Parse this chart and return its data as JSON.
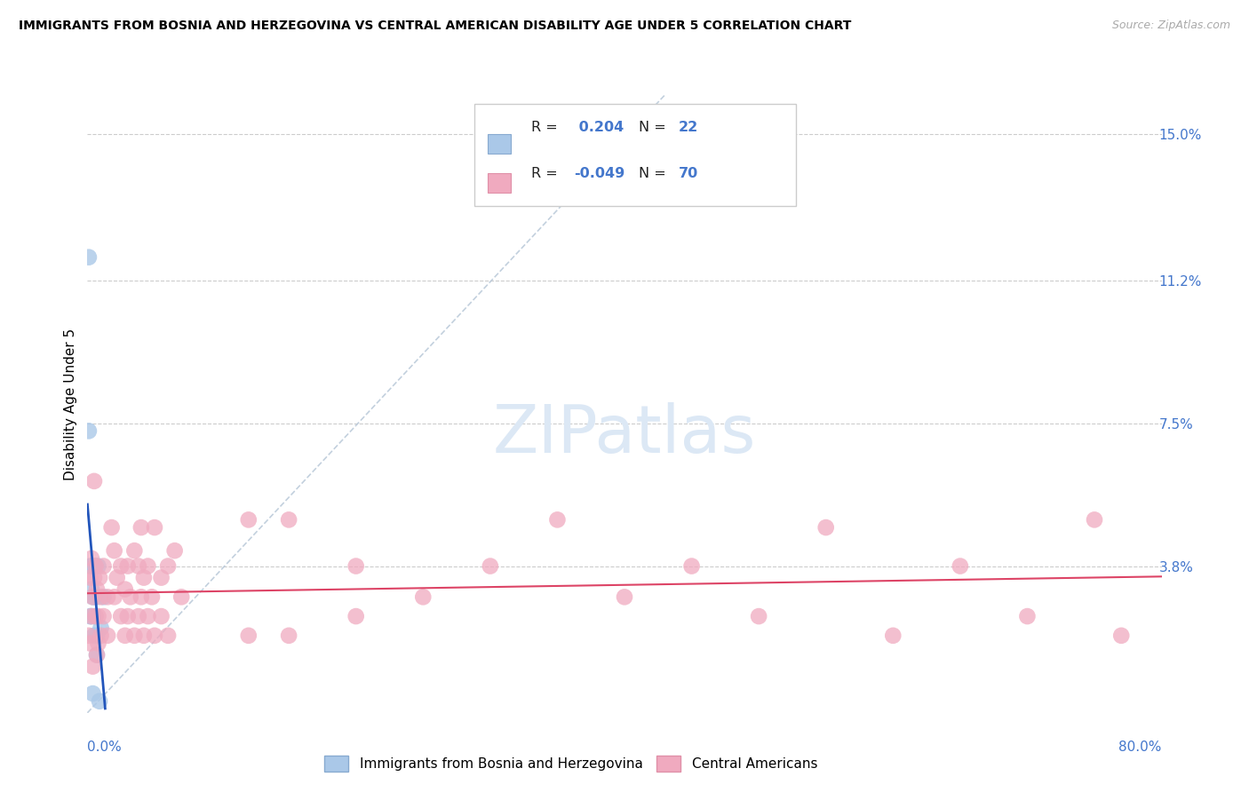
{
  "title": "IMMIGRANTS FROM BOSNIA AND HERZEGOVINA VS CENTRAL AMERICAN DISABILITY AGE UNDER 5 CORRELATION CHART",
  "source": "Source: ZipAtlas.com",
  "ylabel": "Disability Age Under 5",
  "ytick_labels": [
    "15.0%",
    "11.2%",
    "7.5%",
    "3.8%"
  ],
  "ytick_values": [
    0.15,
    0.112,
    0.075,
    0.038
  ],
  "xlim": [
    0.0,
    0.8
  ],
  "ylim": [
    0.0,
    0.16
  ],
  "r_bosnia": 0.204,
  "n_bosnia": 22,
  "r_central": -0.049,
  "n_central": 70,
  "legend_entries": [
    "Immigrants from Bosnia and Herzegovina",
    "Central Americans"
  ],
  "blue_color": "#aac8e8",
  "pink_color": "#f0aabf",
  "blue_line_color": "#2255bb",
  "pink_line_color": "#dd4466",
  "dashed_line_color": "#b8c8d8",
  "axis_label_color": "#4477cc",
  "bosnia_x": [
    0.001,
    0.001,
    0.002,
    0.002,
    0.003,
    0.003,
    0.003,
    0.004,
    0.004,
    0.004,
    0.005,
    0.005,
    0.005,
    0.006,
    0.006,
    0.007,
    0.007,
    0.007,
    0.008,
    0.009,
    0.01,
    0.012
  ],
  "bosnia_y": [
    0.118,
    0.073,
    0.038,
    0.025,
    0.038,
    0.032,
    0.025,
    0.038,
    0.03,
    0.005,
    0.038,
    0.03,
    0.02,
    0.038,
    0.025,
    0.03,
    0.02,
    0.015,
    0.038,
    0.003,
    0.022,
    0.03
  ],
  "central_x": [
    0.001,
    0.002,
    0.002,
    0.003,
    0.003,
    0.004,
    0.004,
    0.005,
    0.005,
    0.006,
    0.006,
    0.007,
    0.007,
    0.008,
    0.008,
    0.009,
    0.01,
    0.01,
    0.012,
    0.012,
    0.015,
    0.015,
    0.018,
    0.02,
    0.02,
    0.022,
    0.025,
    0.025,
    0.028,
    0.028,
    0.03,
    0.03,
    0.032,
    0.035,
    0.035,
    0.038,
    0.038,
    0.04,
    0.04,
    0.042,
    0.042,
    0.045,
    0.045,
    0.048,
    0.05,
    0.05,
    0.055,
    0.055,
    0.06,
    0.06,
    0.065,
    0.07,
    0.12,
    0.12,
    0.15,
    0.15,
    0.2,
    0.2,
    0.25,
    0.3,
    0.35,
    0.4,
    0.45,
    0.5,
    0.55,
    0.6,
    0.65,
    0.7,
    0.75,
    0.77
  ],
  "central_y": [
    0.02,
    0.035,
    0.018,
    0.04,
    0.025,
    0.03,
    0.012,
    0.06,
    0.035,
    0.038,
    0.025,
    0.032,
    0.015,
    0.025,
    0.018,
    0.035,
    0.03,
    0.02,
    0.038,
    0.025,
    0.03,
    0.02,
    0.048,
    0.042,
    0.03,
    0.035,
    0.038,
    0.025,
    0.032,
    0.02,
    0.038,
    0.025,
    0.03,
    0.042,
    0.02,
    0.025,
    0.038,
    0.048,
    0.03,
    0.035,
    0.02,
    0.025,
    0.038,
    0.03,
    0.048,
    0.02,
    0.035,
    0.025,
    0.038,
    0.02,
    0.042,
    0.03,
    0.05,
    0.02,
    0.05,
    0.02,
    0.038,
    0.025,
    0.03,
    0.038,
    0.05,
    0.03,
    0.038,
    0.025,
    0.048,
    0.02,
    0.038,
    0.025,
    0.05,
    0.02
  ]
}
